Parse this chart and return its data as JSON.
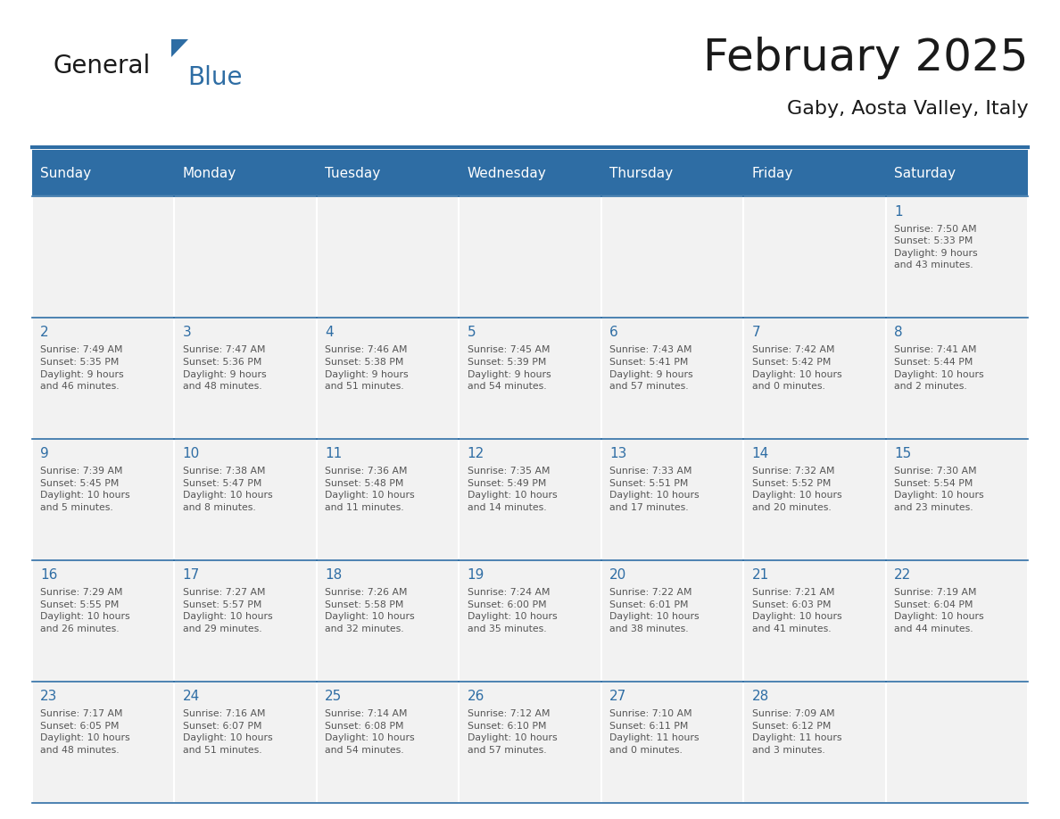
{
  "title": "February 2025",
  "subtitle": "Gaby, Aosta Valley, Italy",
  "header_bg": "#2E6DA4",
  "header_text_color": "#FFFFFF",
  "cell_bg": "#F2F2F2",
  "cell_border_color": "#2E6DA4",
  "day_number_color": "#2E6DA4",
  "info_text_color": "#555555",
  "days_of_week": [
    "Sunday",
    "Monday",
    "Tuesday",
    "Wednesday",
    "Thursday",
    "Friday",
    "Saturday"
  ],
  "calendar_data": [
    [
      null,
      null,
      null,
      null,
      null,
      null,
      {
        "day": 1,
        "sunrise": "7:50 AM",
        "sunset": "5:33 PM",
        "daylight": "9 hours\nand 43 minutes."
      }
    ],
    [
      {
        "day": 2,
        "sunrise": "7:49 AM",
        "sunset": "5:35 PM",
        "daylight": "9 hours\nand 46 minutes."
      },
      {
        "day": 3,
        "sunrise": "7:47 AM",
        "sunset": "5:36 PM",
        "daylight": "9 hours\nand 48 minutes."
      },
      {
        "day": 4,
        "sunrise": "7:46 AM",
        "sunset": "5:38 PM",
        "daylight": "9 hours\nand 51 minutes."
      },
      {
        "day": 5,
        "sunrise": "7:45 AM",
        "sunset": "5:39 PM",
        "daylight": "9 hours\nand 54 minutes."
      },
      {
        "day": 6,
        "sunrise": "7:43 AM",
        "sunset": "5:41 PM",
        "daylight": "9 hours\nand 57 minutes."
      },
      {
        "day": 7,
        "sunrise": "7:42 AM",
        "sunset": "5:42 PM",
        "daylight": "10 hours\nand 0 minutes."
      },
      {
        "day": 8,
        "sunrise": "7:41 AM",
        "sunset": "5:44 PM",
        "daylight": "10 hours\nand 2 minutes."
      }
    ],
    [
      {
        "day": 9,
        "sunrise": "7:39 AM",
        "sunset": "5:45 PM",
        "daylight": "10 hours\nand 5 minutes."
      },
      {
        "day": 10,
        "sunrise": "7:38 AM",
        "sunset": "5:47 PM",
        "daylight": "10 hours\nand 8 minutes."
      },
      {
        "day": 11,
        "sunrise": "7:36 AM",
        "sunset": "5:48 PM",
        "daylight": "10 hours\nand 11 minutes."
      },
      {
        "day": 12,
        "sunrise": "7:35 AM",
        "sunset": "5:49 PM",
        "daylight": "10 hours\nand 14 minutes."
      },
      {
        "day": 13,
        "sunrise": "7:33 AM",
        "sunset": "5:51 PM",
        "daylight": "10 hours\nand 17 minutes."
      },
      {
        "day": 14,
        "sunrise": "7:32 AM",
        "sunset": "5:52 PM",
        "daylight": "10 hours\nand 20 minutes."
      },
      {
        "day": 15,
        "sunrise": "7:30 AM",
        "sunset": "5:54 PM",
        "daylight": "10 hours\nand 23 minutes."
      }
    ],
    [
      {
        "day": 16,
        "sunrise": "7:29 AM",
        "sunset": "5:55 PM",
        "daylight": "10 hours\nand 26 minutes."
      },
      {
        "day": 17,
        "sunrise": "7:27 AM",
        "sunset": "5:57 PM",
        "daylight": "10 hours\nand 29 minutes."
      },
      {
        "day": 18,
        "sunrise": "7:26 AM",
        "sunset": "5:58 PM",
        "daylight": "10 hours\nand 32 minutes."
      },
      {
        "day": 19,
        "sunrise": "7:24 AM",
        "sunset": "6:00 PM",
        "daylight": "10 hours\nand 35 minutes."
      },
      {
        "day": 20,
        "sunrise": "7:22 AM",
        "sunset": "6:01 PM",
        "daylight": "10 hours\nand 38 minutes."
      },
      {
        "day": 21,
        "sunrise": "7:21 AM",
        "sunset": "6:03 PM",
        "daylight": "10 hours\nand 41 minutes."
      },
      {
        "day": 22,
        "sunrise": "7:19 AM",
        "sunset": "6:04 PM",
        "daylight": "10 hours\nand 44 minutes."
      }
    ],
    [
      {
        "day": 23,
        "sunrise": "7:17 AM",
        "sunset": "6:05 PM",
        "daylight": "10 hours\nand 48 minutes."
      },
      {
        "day": 24,
        "sunrise": "7:16 AM",
        "sunset": "6:07 PM",
        "daylight": "10 hours\nand 51 minutes."
      },
      {
        "day": 25,
        "sunrise": "7:14 AM",
        "sunset": "6:08 PM",
        "daylight": "10 hours\nand 54 minutes."
      },
      {
        "day": 26,
        "sunrise": "7:12 AM",
        "sunset": "6:10 PM",
        "daylight": "10 hours\nand 57 minutes."
      },
      {
        "day": 27,
        "sunrise": "7:10 AM",
        "sunset": "6:11 PM",
        "daylight": "11 hours\nand 0 minutes."
      },
      {
        "day": 28,
        "sunrise": "7:09 AM",
        "sunset": "6:12 PM",
        "daylight": "11 hours\nand 3 minutes."
      },
      null
    ]
  ],
  "logo_general_color": "#1a1a1a",
  "logo_blue_color": "#2E6DA4",
  "logo_triangle_color": "#2E6DA4"
}
